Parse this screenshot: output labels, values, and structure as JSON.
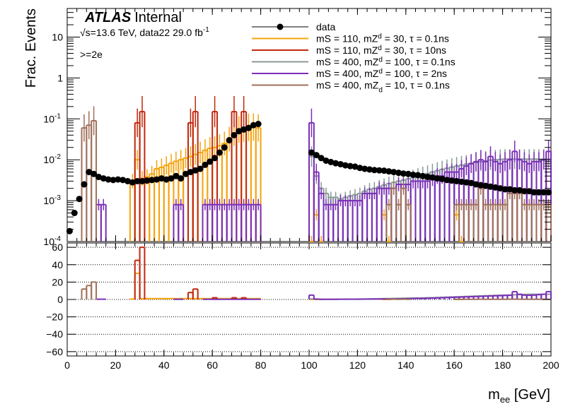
{
  "chart_data": {
    "type": "histogram",
    "experiment_label": "ATLAS",
    "status_label": "Internal",
    "energy_line": "√s=13.6 TeV, data22 29.0 fb",
    "energy_sup": "-1",
    "selection_label": ">=2e",
    "ylabel": "Frac. Events",
    "xlabel_main": "m",
    "xlabel_sub": "ee",
    "xlabel_unit": " [GeV]",
    "xlim": [
      0,
      200
    ],
    "ylim_top": [
      0.0001,
      50
    ],
    "ylim_ratio": [
      -65,
      65
    ],
    "yscale_top": "log",
    "x_ticks": [
      "0",
      "20",
      "40",
      "60",
      "80",
      "100",
      "120",
      "140",
      "160",
      "180",
      "200"
    ],
    "y_ticks_top": [
      {
        "v": 10,
        "base": "10",
        "exp": ""
      },
      {
        "v": 1,
        "base": "1",
        "exp": ""
      },
      {
        "v": 0.1,
        "base": "10",
        "exp": "-1"
      },
      {
        "v": 0.01,
        "base": "10",
        "exp": "-2"
      },
      {
        "v": 0.001,
        "base": "10",
        "exp": "-3"
      },
      {
        "v": 0.0001,
        "base": "10",
        "exp": "-4"
      }
    ],
    "y_ticks_ratio": [
      "60",
      "40",
      "20",
      "0",
      "−20",
      "−40",
      "−60"
    ],
    "legend_position": "top-center",
    "grid_ratio": "dotted horizontal",
    "series": [
      {
        "name": "data",
        "label_main": "data",
        "label_sup": "",
        "label_sub": "",
        "label_rest": "",
        "color": "#000000",
        "kind": "points",
        "x": [
          1,
          3,
          5,
          7,
          9,
          11,
          13,
          15,
          17,
          19,
          21,
          23,
          25,
          27,
          29,
          31,
          33,
          35,
          37,
          39,
          41,
          43,
          45,
          47,
          49,
          51,
          53,
          55,
          57,
          59,
          61,
          63,
          65,
          67,
          69,
          71,
          73,
          75,
          77,
          79,
          101,
          103,
          105,
          107,
          109,
          111,
          113,
          115,
          117,
          119,
          121,
          123,
          125,
          127,
          129,
          131,
          133,
          135,
          137,
          139,
          141,
          143,
          145,
          147,
          149,
          151,
          153,
          155,
          157,
          159,
          161,
          163,
          165,
          167,
          169,
          171,
          173,
          175,
          177,
          179,
          181,
          183,
          185,
          187,
          189,
          191,
          193,
          195,
          197,
          199
        ],
        "y": [
          0.00018,
          0.0005,
          0.0011,
          0.0025,
          0.005,
          0.0045,
          0.0038,
          0.0035,
          0.0033,
          0.0032,
          0.0033,
          0.0032,
          0.003,
          0.0028,
          0.003,
          0.003,
          0.0031,
          0.0032,
          0.0033,
          0.0035,
          0.0033,
          0.0035,
          0.004,
          0.0035,
          0.0045,
          0.005,
          0.0055,
          0.006,
          0.0075,
          0.009,
          0.011,
          0.015,
          0.02,
          0.03,
          0.04,
          0.05,
          0.055,
          0.06,
          0.07,
          0.075,
          0.015,
          0.013,
          0.011,
          0.0095,
          0.0088,
          0.0082,
          0.0078,
          0.0073,
          0.007,
          0.0068,
          0.0063,
          0.006,
          0.0058,
          0.0056,
          0.0055,
          0.0054,
          0.0052,
          0.005,
          0.0048,
          0.0046,
          0.0045,
          0.0043,
          0.0042,
          0.004,
          0.0038,
          0.0037,
          0.0035,
          0.0034,
          0.0032,
          0.0031,
          0.003,
          0.0029,
          0.0028,
          0.0027,
          0.0025,
          0.0024,
          0.0023,
          0.0022,
          0.0021,
          0.002,
          0.0019,
          0.0019,
          0.0018,
          0.0018,
          0.0017,
          0.0017,
          0.0016,
          0.0016,
          0.0016,
          0.0016
        ],
        "ratio": []
      },
      {
        "name": "mS = 110, mZd = 30, τ = 0.1ns",
        "label_main": "mS = 110, mZ",
        "label_sup": "d",
        "label_sub": "",
        "label_rest": " = 30, τ = 0.1ns",
        "color": "#f5a30e",
        "kind": "hist",
        "x": [
          27,
          29,
          31,
          33,
          35,
          37,
          39,
          41,
          43,
          45,
          47,
          49,
          51,
          53,
          55,
          57,
          59,
          61,
          63,
          65,
          67,
          69,
          71,
          73,
          75,
          77,
          79,
          101,
          103,
          105,
          131,
          133,
          161,
          163
        ],
        "y": [
          0.003,
          0.01,
          0.0035,
          0.0038,
          0.0045,
          0.006,
          0.0065,
          0.0073,
          0.0082,
          0.0092,
          0.01,
          0.011,
          0.012,
          0.0135,
          0.015,
          0.017,
          0.019,
          0.02,
          0.022,
          0.025,
          0.032,
          0.045,
          0.055,
          0.058,
          0.062,
          0.063,
          0.06,
          0.0001,
          0.00045,
          0.0001,
          0.00045,
          0.0001,
          0.00045,
          0.0001
        ],
        "ratio": [
          0.5,
          30,
          1,
          1,
          1,
          1,
          1,
          1,
          1,
          1,
          1,
          1,
          1,
          1,
          1,
          1,
          1,
          1,
          1,
          1,
          1,
          1,
          1,
          1,
          1,
          1,
          1,
          0,
          0,
          0,
          0,
          0,
          0,
          0
        ]
      },
      {
        "name": "mS = 110, mZd = 30, τ = 10ns",
        "label_main": "mS = 110, mZ",
        "label_sup": "d",
        "label_sub": "",
        "label_rest": " = 30, τ = 10ns",
        "color": "#c2280c",
        "kind": "hist",
        "x": [
          29,
          31,
          51,
          53,
          61,
          69,
          73
        ],
        "y": [
          0.08,
          0.15,
          0.08,
          0.15,
          0.15,
          0.15,
          0.15
        ],
        "ratio": [
          45,
          60,
          8,
          12,
          2,
          2,
          2
        ]
      },
      {
        "name": "mS = 400, mZd = 100, τ = 0.1ns",
        "label_main": "mS = 400, mZ",
        "label_sup": "d",
        "label_sub": "",
        "label_rest": " = 100, τ = 0.1ns",
        "color": "#8a9a98",
        "kind": "hist",
        "x": [
          101,
          103,
          105,
          107,
          109,
          111,
          113,
          115,
          117,
          119,
          121,
          123,
          125,
          127,
          129,
          131,
          133,
          135,
          137,
          139,
          141,
          143,
          145,
          147,
          149,
          151,
          153,
          155,
          157,
          159,
          161,
          163,
          165,
          167,
          169,
          171,
          173,
          175,
          177,
          179,
          181,
          183,
          185,
          187,
          189,
          191,
          193,
          195,
          197,
          199
        ],
        "y": [
          0.012,
          0.004,
          0.002,
          0.0015,
          0.0012,
          0.0012,
          0.0011,
          0.0012,
          0.0013,
          0.0014,
          0.0015,
          0.0017,
          0.0019,
          0.002,
          0.0022,
          0.0024,
          0.0026,
          0.0028,
          0.003,
          0.0032,
          0.0034,
          0.0037,
          0.004,
          0.0043,
          0.0046,
          0.005,
          0.0054,
          0.0058,
          0.0062,
          0.0066,
          0.007,
          0.0074,
          0.0078,
          0.0082,
          0.0086,
          0.009,
          0.0094,
          0.0098,
          0.01,
          0.0102,
          0.0104,
          0.0104,
          0.0104,
          0.0104,
          0.0104,
          0.0104,
          0.0104,
          0.0104,
          0.0104,
          0.0104
        ],
        "ratio": [
          0.5,
          0.3,
          0.2,
          0.2,
          0.2,
          0.2,
          0.3,
          0.3,
          0.4,
          0.4,
          0.5,
          0.6,
          0.7,
          0.8,
          0.9,
          1,
          1.1,
          1.2,
          1.3,
          1.4,
          1.5,
          1.6,
          1.7,
          1.8,
          2,
          2.1,
          2.3,
          2.5,
          2.7,
          2.9,
          3.1,
          3.3,
          3.5,
          3.7,
          3.9,
          4.1,
          4.3,
          4.5,
          4.7,
          4.9,
          5,
          5.2,
          5.4,
          5.6,
          5.8,
          6,
          6,
          6,
          6,
          6
        ]
      },
      {
        "name": "mS = 400, mZd = 100, τ = 2ns",
        "label_main": "mS = 400, mZ",
        "label_sup": "d",
        "label_sub": "",
        "label_rest": " = 100, τ = 2ns",
        "color": "#7a2eb8",
        "kind": "hist",
        "x": [
          13,
          15,
          45,
          47,
          57,
          59,
          61,
          63,
          65,
          67,
          69,
          71,
          73,
          75,
          77,
          79,
          101,
          103,
          105,
          107,
          109,
          111,
          113,
          115,
          117,
          119,
          121,
          123,
          125,
          127,
          129,
          131,
          133,
          135,
          137,
          139,
          141,
          143,
          145,
          147,
          149,
          151,
          153,
          155,
          157,
          159,
          161,
          163,
          165,
          167,
          169,
          171,
          173,
          175,
          177,
          179,
          181,
          183,
          185,
          187,
          189,
          191,
          193,
          195,
          197,
          199
        ],
        "y": [
          0.0008,
          0.0008,
          0.0008,
          0.0008,
          0.0008,
          0.0008,
          0.0008,
          0.0008,
          0.0008,
          0.0008,
          0.0008,
          0.0008,
          0.0008,
          0.0008,
          0.0008,
          0.0008,
          0.08,
          0.005,
          0.0015,
          0.0008,
          0.0008,
          0.0008,
          0.001,
          0.001,
          0.001,
          0.001,
          0.001,
          0.0015,
          0.0015,
          0.0015,
          0.002,
          0.002,
          0.002,
          0.002,
          0.0025,
          0.0025,
          0.0025,
          0.003,
          0.003,
          0.003,
          0.003,
          0.0035,
          0.004,
          0.004,
          0.005,
          0.005,
          0.005,
          0.006,
          0.007,
          0.008,
          0.009,
          0.01,
          0.009,
          0.012,
          0.009,
          0.008,
          0.009,
          0.01,
          0.016,
          0.01,
          0.009,
          0.008,
          0.009,
          0.009,
          0.01,
          0.016
        ],
        "ratio": [
          0.3,
          0.3,
          0.2,
          0.2,
          0.2,
          0.2,
          0.2,
          0.2,
          0.2,
          0.2,
          0.2,
          0.2,
          0.2,
          0.2,
          0.2,
          0.2,
          5,
          0.5,
          0.2,
          0.2,
          0.2,
          0.2,
          0.3,
          0.3,
          0.3,
          0.3,
          0.3,
          0.4,
          0.4,
          0.5,
          0.5,
          0.6,
          0.6,
          0.7,
          0.8,
          0.9,
          1,
          1.1,
          1.2,
          1.3,
          1.4,
          1.6,
          1.8,
          2,
          2.2,
          2.4,
          2.6,
          2.8,
          3,
          3.2,
          3.4,
          3.6,
          3.8,
          4,
          4.2,
          4.4,
          4.6,
          4.8,
          9,
          6,
          5,
          4.8,
          5,
          5.5,
          6,
          9
        ]
      },
      {
        "name": "mS = 400, mZd = 10, τ = 0.1ns",
        "label_main": "mS = 400, mZ",
        "label_sup": "",
        "label_sub": "d",
        "label_rest": " = 10, τ = 0.1ns",
        "color": "#a0705a",
        "kind": "hist",
        "x": [
          7,
          9,
          11,
          133,
          135,
          137,
          139,
          141,
          161,
          163,
          165,
          167,
          169,
          171,
          173,
          175,
          177,
          179,
          181,
          183,
          185,
          187,
          189,
          191,
          193,
          195,
          197,
          199
        ],
        "y": [
          0.06,
          0.07,
          0.09,
          0.0008,
          0.002,
          0.0008,
          0.002,
          0.0008,
          0.0008,
          0.0008,
          0.0008,
          0.0008,
          0.0008,
          0.002,
          0.0008,
          0.0008,
          0.0008,
          0.0008,
          0.0008,
          0.0015,
          0.0015,
          0.0015,
          0.0008,
          0.0008,
          0.0008,
          0.0008,
          0.0008,
          0.0008
        ],
        "ratio": [
          12,
          16,
          20,
          0.2,
          0.3,
          0.2,
          0.3,
          0.2,
          0.2,
          0.2,
          0.2,
          0.2,
          0.2,
          0.3,
          0.2,
          0.2,
          0.2,
          0.2,
          0.2,
          0.3,
          0.3,
          0.3,
          0.2,
          0.2,
          0.2,
          0.2,
          0.2,
          0.2
        ]
      }
    ]
  }
}
